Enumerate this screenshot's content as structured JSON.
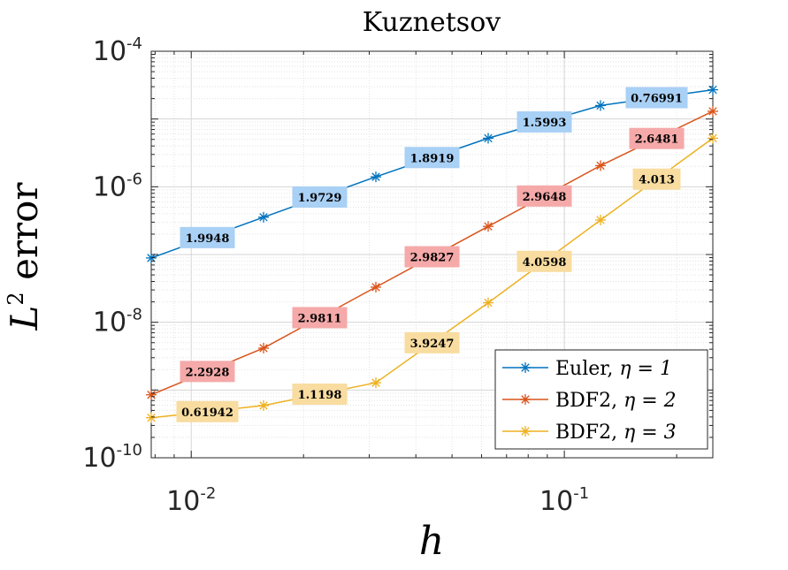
{
  "chart_data": {
    "type": "line",
    "title": "Kuznetsov",
    "xlabel": "h",
    "ylabel_main": "L",
    "ylabel_sup": "2",
    "ylabel_rest": " error",
    "xscale": "log",
    "yscale": "log",
    "xlim": [
      0.0078125,
      0.25
    ],
    "ylim": [
      1e-10,
      0.0001
    ],
    "grid": true,
    "minor_grid": true,
    "x_ticks": [
      {
        "value": 0.01,
        "base": "10",
        "exp": "-2"
      },
      {
        "value": 0.1,
        "base": "10",
        "exp": "-1"
      }
    ],
    "y_ticks": [
      {
        "value": 1e-10,
        "base": "10",
        "exp": "-10"
      },
      {
        "value": 1e-08,
        "base": "10",
        "exp": "-8"
      },
      {
        "value": 1e-06,
        "base": "10",
        "exp": "-6"
      },
      {
        "value": 0.0001,
        "base": "10",
        "exp": "-4"
      }
    ],
    "x": [
      0.0078125,
      0.015625,
      0.03125,
      0.0625,
      0.125,
      0.25
    ],
    "series": [
      {
        "name": "Euler, η = 1",
        "legend_main": "Euler, ",
        "legend_eta": "η = 1",
        "color": "#0072BD",
        "label_bg": "#A9D0F5",
        "values": [
          8.9e-08,
          3.55e-07,
          1.4e-06,
          5.2e-06,
          1.58e-05,
          2.7e-05
        ],
        "rates": [
          "1.9948",
          "1.9729",
          "1.8919",
          "1.5993",
          "0.76991"
        ]
      },
      {
        "name": "BDF2, η = 2",
        "legend_main": "BDF2, ",
        "legend_eta": "η = 2",
        "color": "#D95319",
        "label_bg": "#F5A9A9",
        "values": [
          8.5e-10,
          4.15e-09,
          3.3e-08,
          2.6e-07,
          2.05e-06,
          1.3e-05
        ],
        "rates": [
          "2.2928",
          "2.9811",
          "2.9827",
          "2.9648",
          "2.6481"
        ]
      },
      {
        "name": "BDF2, η = 3",
        "legend_main": "BDF2, ",
        "legend_eta": "η = 3",
        "color": "#EDB120",
        "label_bg": "#F8DCA0",
        "values": [
          3.9e-10,
          5.9e-10,
          1.28e-09,
          1.94e-08,
          3.23e-07,
          5.2e-06
        ],
        "rates": [
          "0.61942",
          "1.1198",
          "3.9247",
          "4.0598",
          "4.013"
        ]
      }
    ],
    "legend_position": "bottom-right"
  }
}
